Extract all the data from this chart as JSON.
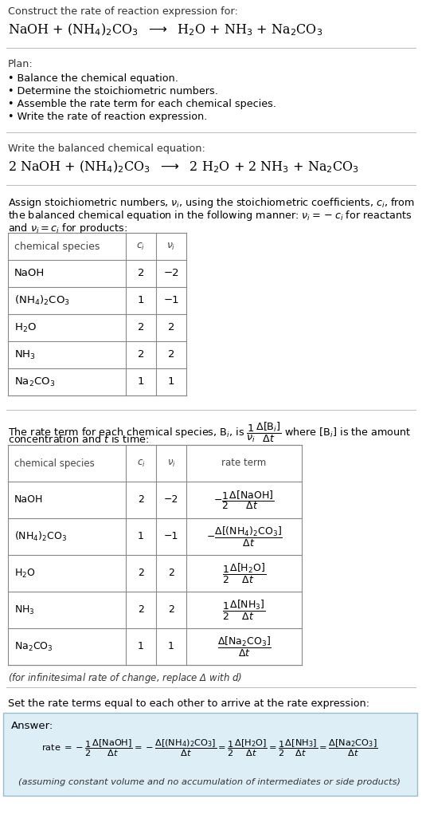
{
  "bg_color": "#ffffff",
  "text_color": "#000000",
  "answer_bg": "#ddeef6",
  "section1_title": "Construct the rate of reaction expression for:",
  "section2_title": "Plan:",
  "section2_bullets": [
    "• Balance the chemical equation.",
    "• Determine the stoichiometric numbers.",
    "• Assemble the rate term for each chemical species.",
    "• Write the rate of reaction expression."
  ],
  "section3_title": "Write the balanced chemical equation:",
  "section4_intro": "Assign stoichiometric numbers, $\\nu_i$, using the stoichiometric coefficients, $c_i$, from",
  "section4_intro2": "the balanced chemical equation in the following manner: $\\nu_i = -c_i$ for reactants",
  "section4_intro3": "and $\\nu_i = c_i$ for products:",
  "table1_headers": [
    "chemical species",
    "$c_i$",
    "$\\nu_i$"
  ],
  "table1_rows": [
    [
      "NaOH",
      "2",
      "−2"
    ],
    [
      "$(\\mathrm{NH_4})_2\\mathrm{CO_3}$",
      "1",
      "−1"
    ],
    [
      "$\\mathrm{H_2O}$",
      "2",
      "2"
    ],
    [
      "$\\mathrm{NH_3}$",
      "2",
      "2"
    ],
    [
      "$\\mathrm{Na_2CO_3}$",
      "1",
      "1"
    ]
  ],
  "section5_intro": "The rate term for each chemical species, B$_i$, is $\\dfrac{1}{\\nu_i}\\dfrac{\\Delta[\\mathrm{B}_i]}{\\Delta t}$ where [B$_i$] is the amount",
  "section5_intro2": "concentration and $t$ is time:",
  "table2_headers": [
    "chemical species",
    "$c_i$",
    "$\\nu_i$",
    "rate term"
  ],
  "table2_rows": [
    [
      "NaOH",
      "2",
      "−2",
      "$-\\dfrac{1}{2}\\dfrac{\\Delta[\\mathrm{NaOH}]}{\\Delta t}$"
    ],
    [
      "$(\\mathrm{NH_4})_2\\mathrm{CO_3}$",
      "1",
      "−1",
      "$-\\dfrac{\\Delta[(\\mathrm{NH_4})_2\\mathrm{CO_3}]}{\\Delta t}$"
    ],
    [
      "$\\mathrm{H_2O}$",
      "2",
      "2",
      "$\\dfrac{1}{2}\\dfrac{\\Delta[\\mathrm{H_2O}]}{\\Delta t}$"
    ],
    [
      "$\\mathrm{NH_3}$",
      "2",
      "2",
      "$\\dfrac{1}{2}\\dfrac{\\Delta[\\mathrm{NH_3}]}{\\Delta t}$"
    ],
    [
      "$\\mathrm{Na_2CO_3}$",
      "1",
      "1",
      "$\\dfrac{\\Delta[\\mathrm{Na_2CO_3}]}{\\Delta t}$"
    ]
  ],
  "footnote": "(for infinitesimal rate of change, replace Δ with $d$)",
  "section6_title": "Set the rate terms equal to each other to arrive at the rate expression:",
  "answer_label": "Answer:",
  "answer_footnote": "(assuming constant volume and no accumulation of intermediates or side products)",
  "hline_color": "#bbbbbb",
  "table_border_color": "#888888",
  "answer_border_color": "#99bbcc"
}
